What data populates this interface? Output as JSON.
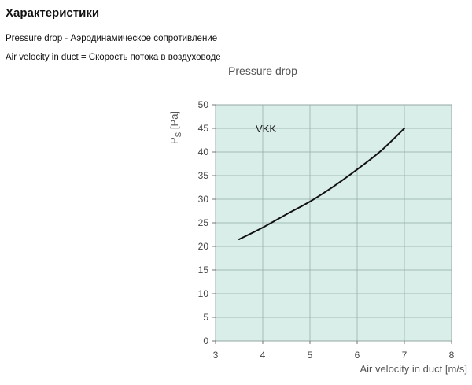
{
  "page": {
    "heading": "Характеристики",
    "line1": "Pressure drop - Аэродинамическое сопротивление",
    "line2": "Air velocity in duct = Скорость потока в воздуховоде"
  },
  "chart_data": {
    "type": "line",
    "title": "Pressure drop",
    "xlabel": "Air velocity in duct [m/s]",
    "ylabel_main": "P",
    "ylabel_sub": "S",
    "ylabel_unit": "[Pa]",
    "xlim": [
      3,
      8
    ],
    "ylim": [
      0,
      50
    ],
    "x_ticks": [
      "3",
      "4",
      "5",
      "6",
      "7",
      "8"
    ],
    "y_ticks": [
      "0",
      "5",
      "10",
      "15",
      "20",
      "25",
      "30",
      "35",
      "40",
      "45",
      "50"
    ],
    "grid": true,
    "background_color": "#d9eee9",
    "line_color": "#111111",
    "series": [
      {
        "x": [
          3.5,
          4.0,
          4.5,
          5.0,
          5.5,
          6.0,
          6.5,
          7.0
        ],
        "y": [
          21.5,
          24.0,
          26.8,
          29.5,
          32.7,
          36.3,
          40.2,
          45.0
        ]
      }
    ],
    "annotations": [
      {
        "text": "VKK",
        "x": 3.85,
        "y": 44.2
      }
    ]
  }
}
